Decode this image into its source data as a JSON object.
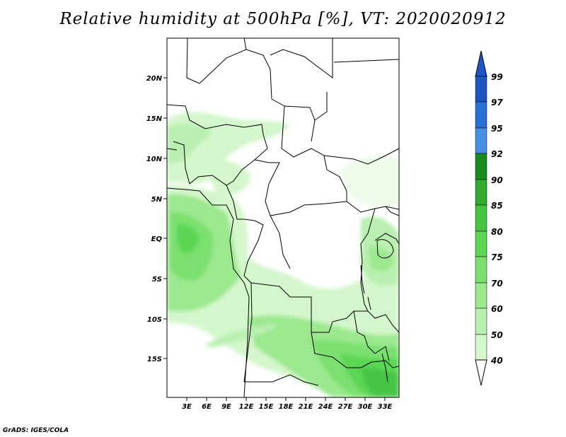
{
  "title": "Relative humidity at 500hPa [%], VT: 2020020912",
  "credit": "GrADS: IGES/COLA",
  "map": {
    "lat_ticks": [
      "20N",
      "15N",
      "10N",
      "5N",
      "EQ",
      "5S",
      "10S",
      "15S"
    ],
    "lon_ticks": [
      "3E",
      "6E",
      "9E",
      "12E",
      "15E",
      "18E",
      "21E",
      "24E",
      "27E",
      "30E",
      "33E"
    ]
  },
  "colorbar": {
    "levels": [
      "40",
      "50",
      "60",
      "70",
      "75",
      "80",
      "85",
      "90",
      "92",
      "95",
      "97",
      "99"
    ],
    "colors": [
      "#eefbea",
      "#d4f6cc",
      "#b9efb0",
      "#9be88f",
      "#7be070",
      "#5cd555",
      "#45c444",
      "#2fab30",
      "#1a8c1f",
      "#4a8fe8",
      "#2a6fd8",
      "#1e55c0"
    ],
    "top_arrow_color": "#1e55c0",
    "bottom_arrow_color": "#ffffff"
  }
}
